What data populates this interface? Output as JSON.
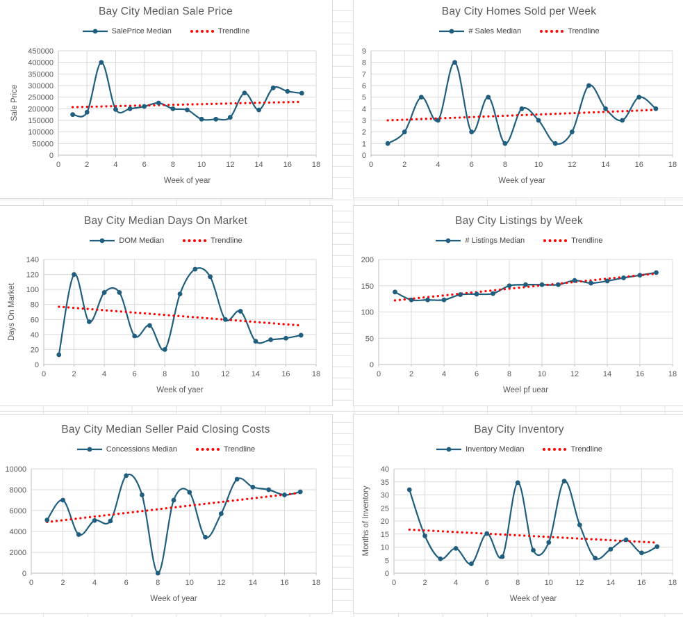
{
  "colors": {
    "series_line": "#1f5e7d",
    "trendline": "#ff0000",
    "chart_title_text": "#595959",
    "axis_text": "#595959",
    "legend_text": "#404040",
    "gridline": "#d9d9d9",
    "axis_line": "#bfbfbf",
    "panel_border": "#d9d9d9",
    "sheet_gridline": "#e3e3e3"
  },
  "chart_data": [
    {
      "type": "line",
      "title": "Bay City Median Sale Price",
      "xlabel": "Week of year",
      "ylabel": "Sale Price",
      "x": [
        1,
        2,
        3,
        4,
        5,
        6,
        7,
        8,
        9,
        10,
        11,
        12,
        13,
        14,
        15,
        16,
        17
      ],
      "series": [
        {
          "name": "SalePrice Median",
          "values": [
            175000,
            185000,
            400000,
            197000,
            200000,
            210000,
            225000,
            200000,
            195000,
            155000,
            155000,
            163000,
            268000,
            195000,
            290000,
            275000,
            267000
          ]
        }
      ],
      "trendline": {
        "name": "Trendline",
        "start": 207000,
        "end": 230000
      },
      "xlim": [
        0,
        18
      ],
      "xstep": 2,
      "ylim": [
        0,
        450000
      ],
      "ystep": 50000,
      "grid": true,
      "legend_position": "top"
    },
    {
      "type": "line",
      "title": "Bay City Homes Sold per Week",
      "xlabel": "Week of year",
      "ylabel": "",
      "x": [
        1,
        2,
        3,
        4,
        5,
        6,
        7,
        8,
        9,
        10,
        11,
        12,
        13,
        14,
        15,
        16,
        17
      ],
      "series": [
        {
          "name": "# Sales Median",
          "values": [
            1,
            2,
            5,
            3,
            8,
            2,
            5,
            1,
            4,
            3,
            1,
            2,
            6,
            4,
            3,
            5,
            4
          ]
        }
      ],
      "trendline": {
        "name": "Trendline",
        "start": 3.0,
        "end": 3.9
      },
      "xlim": [
        0,
        18
      ],
      "xstep": 2,
      "ylim": [
        0,
        9
      ],
      "ystep": 1,
      "grid": true,
      "legend_position": "top"
    },
    {
      "type": "line",
      "title": "Bay City Median Days On Market",
      "xlabel": "Week of yaer",
      "ylabel": "Days On Market",
      "x": [
        1,
        2,
        3,
        4,
        5,
        6,
        7,
        8,
        9,
        10,
        11,
        12,
        13,
        14,
        15,
        16,
        17
      ],
      "series": [
        {
          "name": "DOM Median",
          "values": [
            13,
            120,
            57,
            96,
            96,
            38,
            52,
            20,
            94,
            127,
            117,
            60,
            71,
            31,
            33,
            35,
            39
          ]
        }
      ],
      "trendline": {
        "name": "Trendline",
        "start": 77,
        "end": 52
      },
      "xlim": [
        0,
        18
      ],
      "xstep": 2,
      "ylim": [
        0,
        140
      ],
      "ystep": 20,
      "grid": true,
      "legend_position": "top"
    },
    {
      "type": "line",
      "title": "Bay City Listings by Week",
      "xlabel": "Weel pf uear",
      "ylabel": "",
      "x": [
        1,
        2,
        3,
        4,
        5,
        6,
        7,
        8,
        9,
        10,
        11,
        12,
        13,
        14,
        15,
        16,
        17
      ],
      "series": [
        {
          "name": "# Listings Median",
          "values": [
            138,
            123,
            123,
            123,
            133,
            134,
            135,
            150,
            152,
            152,
            152,
            160,
            155,
            159,
            165,
            170,
            175
          ]
        }
      ],
      "trendline": {
        "name": "Trendline",
        "start": 122,
        "end": 173
      },
      "xlim": [
        0,
        18
      ],
      "xstep": 2,
      "ylim": [
        0,
        200
      ],
      "ystep": 50,
      "grid": true,
      "legend_position": "top"
    },
    {
      "type": "line",
      "title": "Bay City Median Seller Paid Closing Costs",
      "xlabel": "Week of year",
      "ylabel": "",
      "x": [
        1,
        2,
        3,
        4,
        5,
        6,
        7,
        8,
        9,
        10,
        11,
        12,
        13,
        14,
        15,
        16,
        17
      ],
      "series": [
        {
          "name": "Concessions Median",
          "values": [
            5100,
            7000,
            3700,
            5050,
            5000,
            9350,
            7500,
            0,
            7000,
            7750,
            3450,
            5700,
            9000,
            8250,
            8000,
            7500,
            7800
          ]
        }
      ],
      "trendline": {
        "name": "Trendline",
        "start": 4900,
        "end": 7700
      },
      "xlim": [
        0,
        18
      ],
      "xstep": 2,
      "ylim": [
        0,
        10000
      ],
      "ystep": 2000,
      "grid": true,
      "legend_position": "top"
    },
    {
      "type": "line",
      "title": "Bay City Inventory",
      "xlabel": "Week of year",
      "ylabel": "Months of Inventory",
      "x": [
        1,
        2,
        3,
        4,
        5,
        6,
        7,
        8,
        9,
        10,
        11,
        12,
        13,
        14,
        15,
        16,
        17
      ],
      "series": [
        {
          "name": "Inventory Median",
          "values": [
            32,
            14.3,
            5.5,
            9.5,
            3.6,
            15.2,
            6.3,
            34.7,
            8.8,
            11.8,
            35.3,
            18.5,
            5.8,
            9.2,
            12.8,
            7.8,
            10.2
          ]
        }
      ],
      "trendline": {
        "name": "Trendline",
        "start": 16.7,
        "end": 11.7
      },
      "xlim": [
        0,
        18
      ],
      "xstep": 2,
      "ylim": [
        0,
        40
      ],
      "ystep": 5,
      "grid": true,
      "legend_position": "top"
    }
  ]
}
